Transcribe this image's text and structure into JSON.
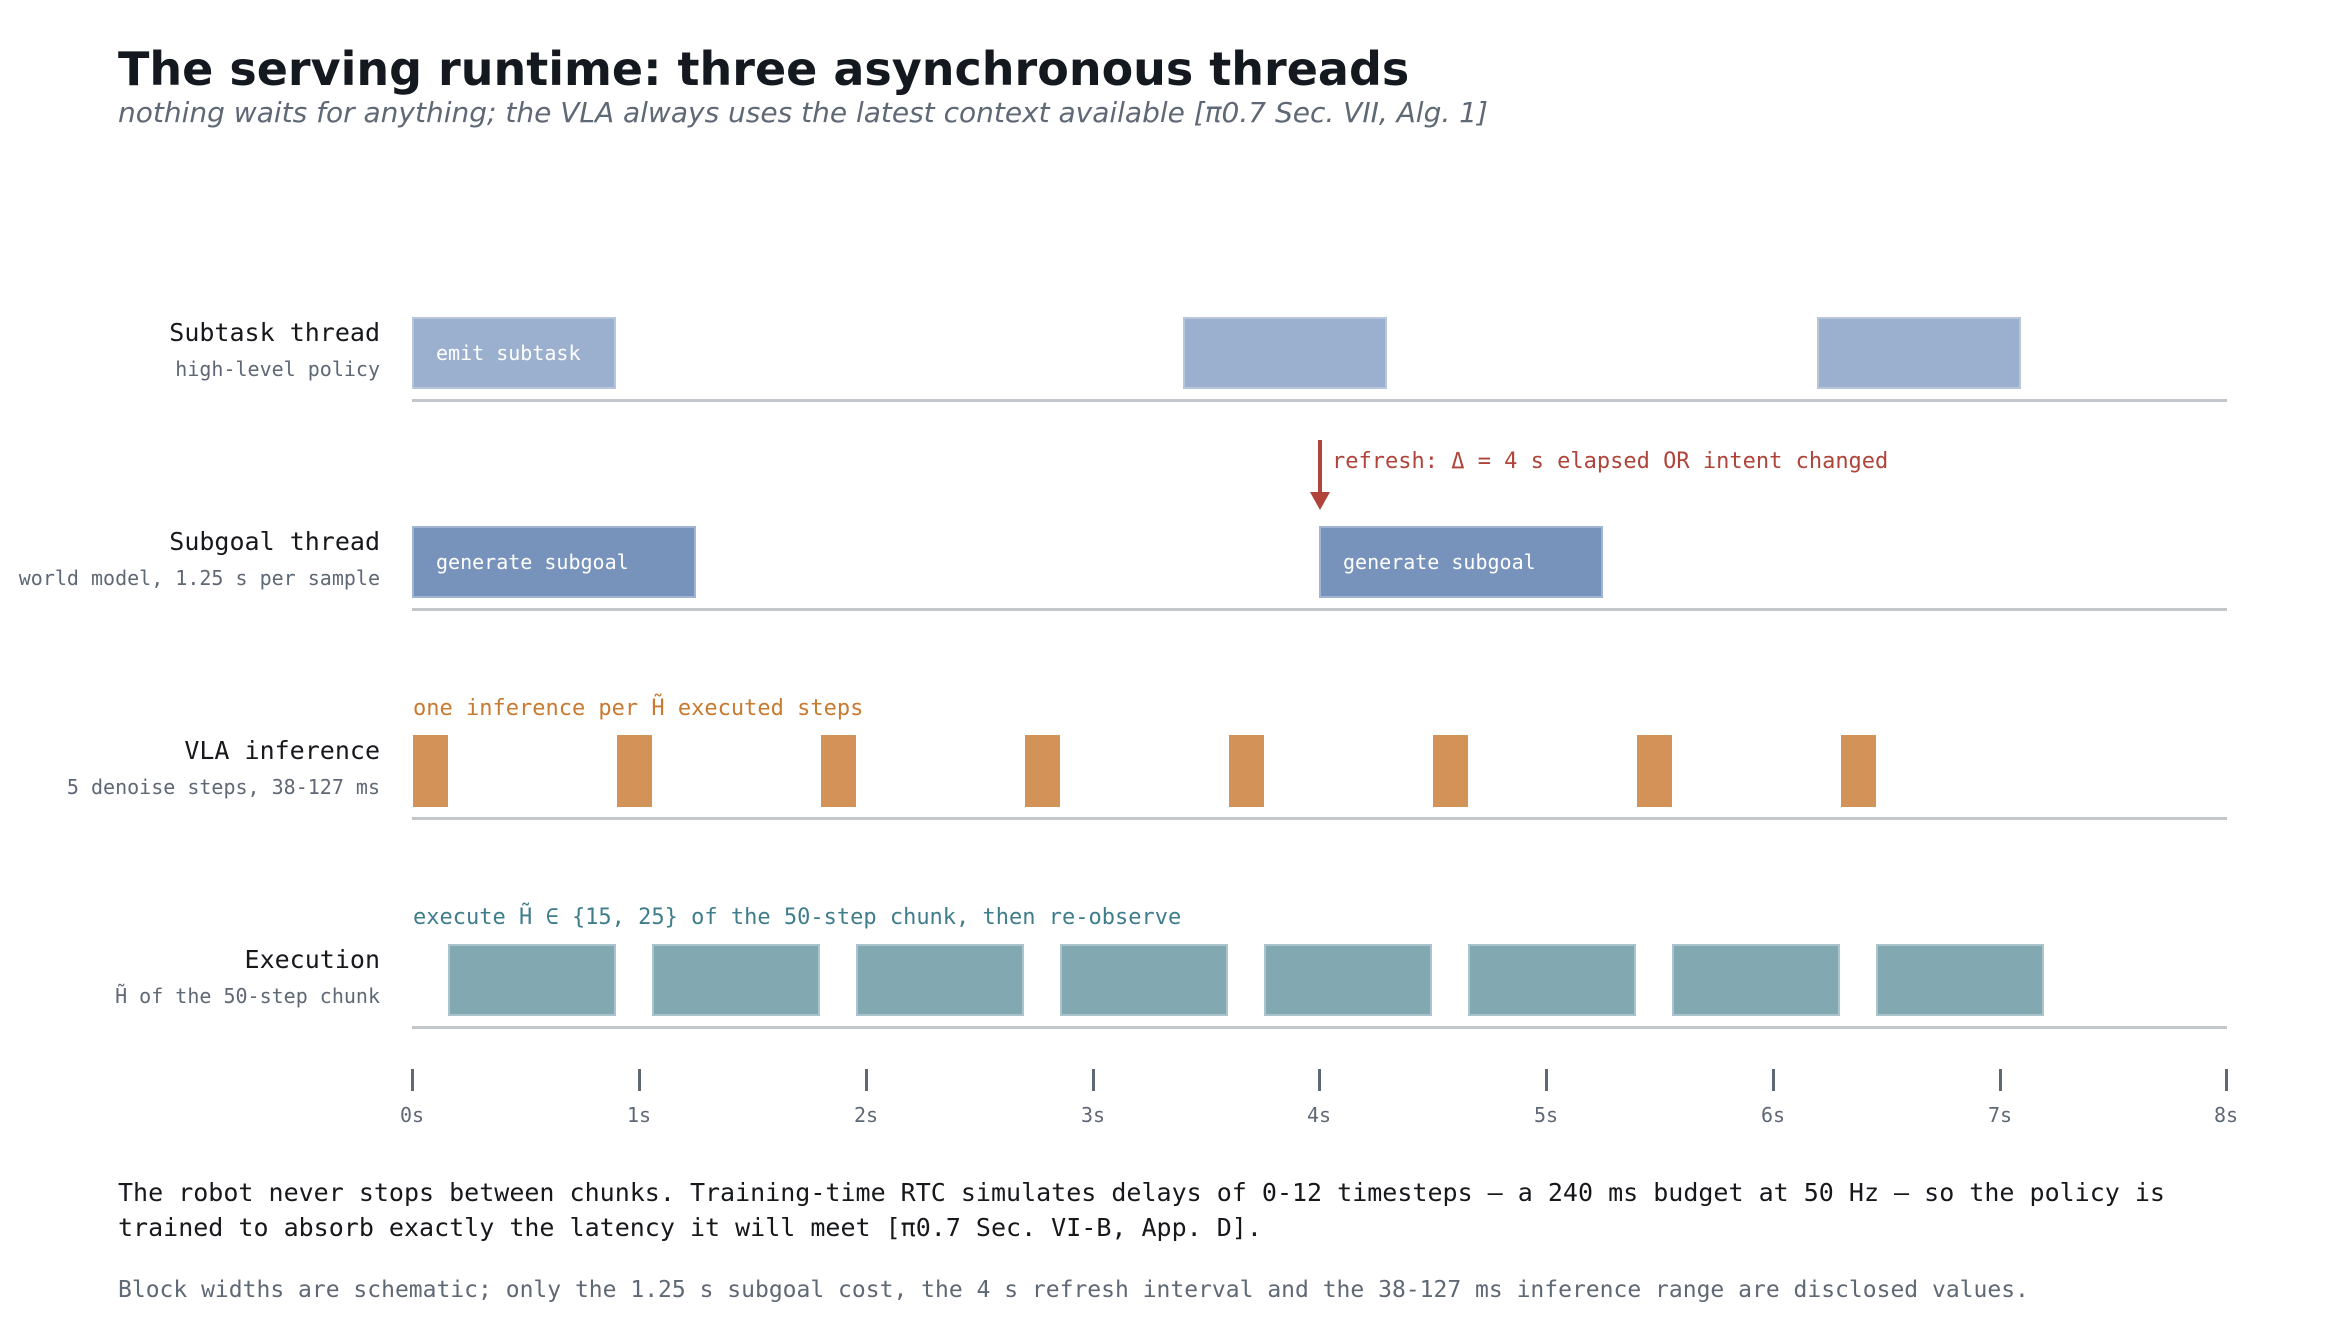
{
  "title": "The serving runtime: three asynchronous threads",
  "subtitle": "nothing waits for anything; the VLA always uses the latest context available  [π0.7 Sec. VII, Alg. 1]",
  "lanes": {
    "subtask": {
      "name": "Subtask thread",
      "sub": "high-level policy",
      "block_label": "emit subtask"
    },
    "subgoal": {
      "name": "Subgoal thread",
      "sub": "world model, 1.25 s per sample",
      "block_label": "generate subgoal"
    },
    "vla": {
      "name": "VLA inference",
      "sub": "5 denoise steps, 38-127 ms"
    },
    "execution": {
      "name": "Execution",
      "sub": "H̃ of the 50-step chunk"
    }
  },
  "annotations": {
    "refresh": "refresh: Δ = 4 s elapsed OR intent changed",
    "inference": "one inference per H̃ executed steps",
    "execute": "execute H̃ ∈ {15, 25} of the 50-step chunk, then re-observe"
  },
  "axis_ticks": [
    "0s",
    "1s",
    "2s",
    "3s",
    "4s",
    "5s",
    "6s",
    "7s",
    "8s"
  ],
  "footnote": "The robot never stops between chunks. Training-time RTC simulates delays of 0-12 timesteps — a 240 ms budget at 50 Hz — so the policy is trained to absorb exactly the latency it will meet  [π0.7 Sec. VI-B, App. D].",
  "disclaimer": "Block widths are schematic; only the 1.25 s subgoal cost, the 4 s refresh interval and the 38-127 ms inference range are disclosed values.",
  "colors": {
    "subtask": "#9bb0ce",
    "subgoal": "#7793bb",
    "inference": "#d39257",
    "execution": "#82a8b2",
    "refresh_arrow": "#b0443a"
  }
}
